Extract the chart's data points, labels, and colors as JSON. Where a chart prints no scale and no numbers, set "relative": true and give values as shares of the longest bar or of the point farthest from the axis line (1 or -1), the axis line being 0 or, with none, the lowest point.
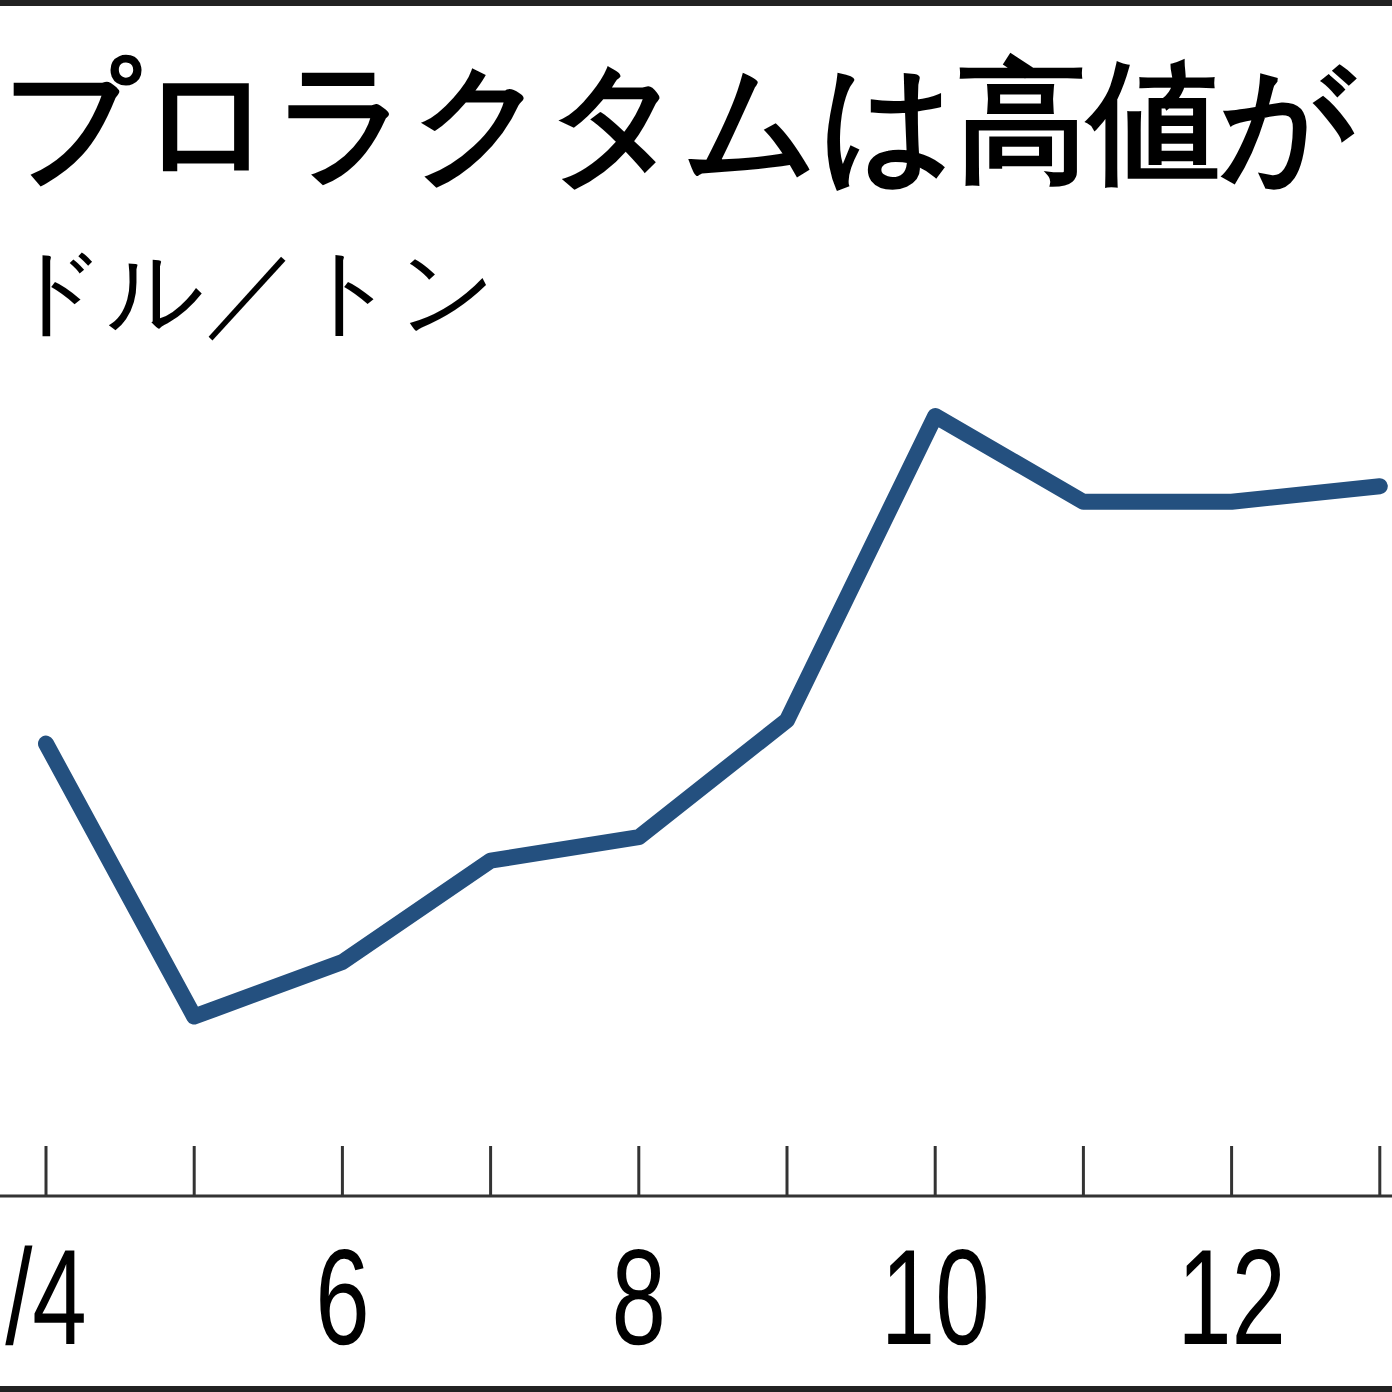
{
  "chart_data": {
    "type": "line",
    "title": "プロラクタムは高値が",
    "ylabel": "ドル／トン",
    "categories": [
      "/4",
      null,
      "6",
      null,
      "8",
      null,
      "10",
      null,
      "12",
      null
    ],
    "relative": true,
    "series": [
      {
        "color": "#24507f",
        "values": [
          0.58,
          0.23,
          0.3,
          0.43,
          0.46,
          0.61,
          1,
          0.89,
          0.89,
          0.91
        ]
      }
    ]
  }
}
